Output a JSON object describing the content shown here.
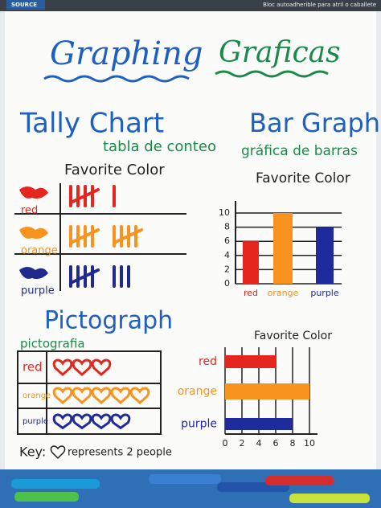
{
  "pad": {
    "brand": "SOURCE",
    "label": "Bloc autoadherible para atril o caballete"
  },
  "header": {
    "title_en": "Graphing",
    "title_es": "Graficas"
  },
  "tally": {
    "title": "Tally Chart",
    "subtitle": "tabla de conteo",
    "chart_title": "Favorite Color",
    "rows": [
      {
        "label": "red",
        "count": 6,
        "color": "#e5261f"
      },
      {
        "label": "orange",
        "count": 10,
        "color": "#f7931e"
      },
      {
        "label": "purple",
        "count": 8,
        "color": "#1f2a8c"
      }
    ]
  },
  "bar_graph": {
    "title": "Bar Graph",
    "subtitle": "gráfica de barras",
    "chart_title": "Favorite Color",
    "categories": [
      "red",
      "orange",
      "purple"
    ],
    "values": [
      6,
      10,
      8
    ],
    "colors": [
      "#e5261f",
      "#f7931e",
      "#1f2a9c"
    ],
    "ylim": [
      0,
      10
    ],
    "yticks": [
      0,
      2,
      4,
      6,
      8,
      10
    ]
  },
  "pictograph": {
    "title": "Pictograph",
    "subtitle": "pictografia",
    "rows": [
      {
        "label": "red",
        "hearts": 3,
        "color": "#e5261f"
      },
      {
        "label": "orange",
        "hearts": 5,
        "color": "#f7931e"
      },
      {
        "label": "purple",
        "hearts": 4,
        "color": "#1f2a9c"
      }
    ],
    "key_prefix": "Key:",
    "key_text": "represents 2 people"
  },
  "hbar": {
    "chart_title": "Favorite Color",
    "categories": [
      "red",
      "orange",
      "purple"
    ],
    "values": [
      6,
      10,
      8
    ],
    "colors": [
      "#e5261f",
      "#f7931e",
      "#1f2a9c"
    ],
    "xlim": [
      0,
      10
    ],
    "xticks": [
      0,
      2,
      4,
      6,
      8,
      10
    ]
  }
}
